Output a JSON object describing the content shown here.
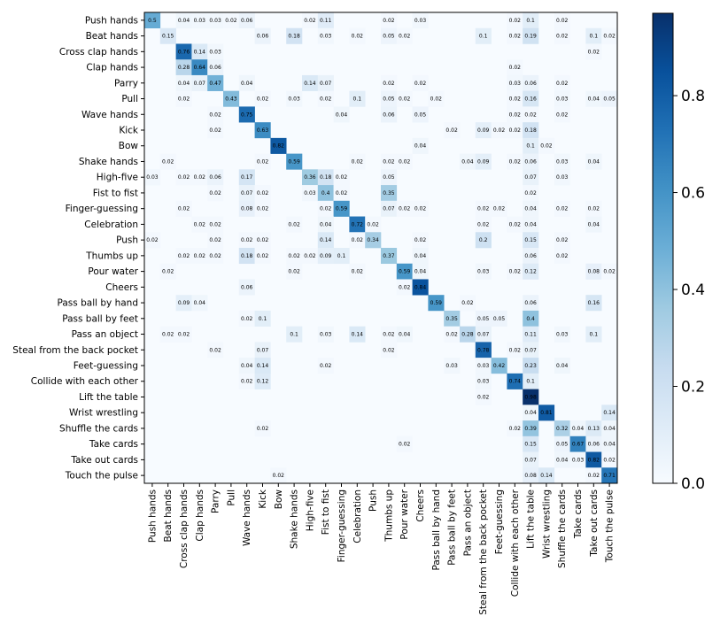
{
  "chart_data": {
    "type": "heatmap",
    "title": "",
    "xlabel": "",
    "ylabel": "",
    "colormap": "Blues",
    "vmin": 0.0,
    "vmax": 0.97,
    "colorbar_ticks": [
      "0.0",
      "0.2",
      "0.4",
      "0.6",
      "0.8"
    ],
    "colorbar_tick_values": [
      0.0,
      0.2,
      0.4,
      0.6,
      0.8
    ],
    "labels": [
      "Push hands",
      "Beat hands",
      "Cross clap hands",
      "Clap hands",
      "Parry",
      "Pull",
      "Wave hands",
      "Kick",
      "Bow",
      "Shake hands",
      "High-five",
      "Fist to fist",
      "Finger-guessing",
      "Celebration",
      "Push",
      "Thumbs up",
      "Pour water",
      "Cheers",
      "Pass ball by hand",
      "Pass ball by feet",
      "Pass an object",
      "Steal from the back pocket",
      "Feet-guessing",
      "Collide with each other",
      "Lift the table",
      "Wrist wrestling",
      "Shuffle the cards",
      "Take cards",
      "Take out cards",
      "Touch the pulse"
    ],
    "cells": [
      [
        0,
        0,
        "0.5"
      ],
      [
        0,
        2,
        "0.04"
      ],
      [
        0,
        3,
        "0.03"
      ],
      [
        0,
        4,
        "0.03"
      ],
      [
        0,
        5,
        "0.02"
      ],
      [
        0,
        6,
        "0.06"
      ],
      [
        0,
        10,
        "0.02"
      ],
      [
        0,
        11,
        "0.11"
      ],
      [
        0,
        15,
        "0.02"
      ],
      [
        0,
        17,
        "0.03"
      ],
      [
        0,
        23,
        "0.02"
      ],
      [
        0,
        24,
        "0.1"
      ],
      [
        0,
        26,
        "0.02"
      ],
      [
        1,
        1,
        "0.15"
      ],
      [
        1,
        7,
        "0.06"
      ],
      [
        1,
        9,
        "0.18"
      ],
      [
        1,
        11,
        "0.03"
      ],
      [
        1,
        13,
        "0.02"
      ],
      [
        1,
        15,
        "0.05"
      ],
      [
        1,
        16,
        "0.02"
      ],
      [
        1,
        21,
        "0.1"
      ],
      [
        1,
        23,
        "0.02"
      ],
      [
        1,
        24,
        "0.19"
      ],
      [
        1,
        26,
        "0.02"
      ],
      [
        1,
        28,
        "0.1"
      ],
      [
        1,
        29,
        "0.02"
      ],
      [
        2,
        2,
        "0.76"
      ],
      [
        2,
        3,
        "0.14"
      ],
      [
        2,
        4,
        "0.03"
      ],
      [
        2,
        28,
        "0.02"
      ],
      [
        3,
        2,
        "0.28"
      ],
      [
        3,
        3,
        "0.64"
      ],
      [
        3,
        4,
        "0.06"
      ],
      [
        3,
        23,
        "0.02"
      ],
      [
        4,
        2,
        "0.04"
      ],
      [
        4,
        3,
        "0.07"
      ],
      [
        4,
        4,
        "0.47"
      ],
      [
        4,
        6,
        "0.04"
      ],
      [
        4,
        10,
        "0.14"
      ],
      [
        4,
        11,
        "0.07"
      ],
      [
        4,
        15,
        "0.02"
      ],
      [
        4,
        17,
        "0.02"
      ],
      [
        4,
        23,
        "0.03"
      ],
      [
        4,
        24,
        "0.06"
      ],
      [
        4,
        26,
        "0.02"
      ],
      [
        5,
        2,
        "0.02"
      ],
      [
        5,
        5,
        "0.43"
      ],
      [
        5,
        7,
        "0.02"
      ],
      [
        5,
        9,
        "0.03"
      ],
      [
        5,
        11,
        "0.02"
      ],
      [
        5,
        13,
        "0.1"
      ],
      [
        5,
        15,
        "0.05"
      ],
      [
        5,
        16,
        "0.02"
      ],
      [
        5,
        18,
        "0.02"
      ],
      [
        5,
        23,
        "0.02"
      ],
      [
        5,
        24,
        "0.16"
      ],
      [
        5,
        26,
        "0.03"
      ],
      [
        5,
        28,
        "0.04"
      ],
      [
        5,
        29,
        "0.05"
      ],
      [
        6,
        4,
        "0.02"
      ],
      [
        6,
        6,
        "0.75"
      ],
      [
        6,
        12,
        "0.04"
      ],
      [
        6,
        15,
        "0.06"
      ],
      [
        6,
        17,
        "0.05"
      ],
      [
        6,
        23,
        "0.02"
      ],
      [
        6,
        24,
        "0.02"
      ],
      [
        6,
        26,
        "0.02"
      ],
      [
        7,
        4,
        "0.02"
      ],
      [
        7,
        7,
        "0.63"
      ],
      [
        7,
        19,
        "0.02"
      ],
      [
        7,
        21,
        "0.09"
      ],
      [
        7,
        22,
        "0.02"
      ],
      [
        7,
        23,
        "0.02"
      ],
      [
        7,
        24,
        "0.18"
      ],
      [
        8,
        8,
        "0.82"
      ],
      [
        8,
        17,
        "0.04"
      ],
      [
        8,
        24,
        "0.1"
      ],
      [
        8,
        25,
        "0.02"
      ],
      [
        9,
        1,
        "0.02"
      ],
      [
        9,
        7,
        "0.02"
      ],
      [
        9,
        9,
        "0.59"
      ],
      [
        9,
        13,
        "0.02"
      ],
      [
        9,
        15,
        "0.02"
      ],
      [
        9,
        16,
        "0.02"
      ],
      [
        9,
        20,
        "0.04"
      ],
      [
        9,
        21,
        "0.09"
      ],
      [
        9,
        23,
        "0.02"
      ],
      [
        9,
        24,
        "0.06"
      ],
      [
        9,
        26,
        "0.03"
      ],
      [
        9,
        28,
        "0.04"
      ],
      [
        10,
        0,
        "0.03"
      ],
      [
        10,
        2,
        "0.02"
      ],
      [
        10,
        3,
        "0.02"
      ],
      [
        10,
        4,
        "0.06"
      ],
      [
        10,
        6,
        "0.17"
      ],
      [
        10,
        10,
        "0.36"
      ],
      [
        10,
        11,
        "0.18"
      ],
      [
        10,
        12,
        "0.02"
      ],
      [
        10,
        15,
        "0.05"
      ],
      [
        10,
        24,
        "0.07"
      ],
      [
        10,
        26,
        "0.03"
      ],
      [
        11,
        4,
        "0.02"
      ],
      [
        11,
        6,
        "0.07"
      ],
      [
        11,
        7,
        "0.02"
      ],
      [
        11,
        10,
        "0.03"
      ],
      [
        11,
        11,
        "0.4"
      ],
      [
        11,
        12,
        "0.02"
      ],
      [
        11,
        15,
        "0.35"
      ],
      [
        11,
        24,
        "0.02"
      ],
      [
        12,
        2,
        "0.02"
      ],
      [
        12,
        6,
        "0.08"
      ],
      [
        12,
        7,
        "0.02"
      ],
      [
        12,
        11,
        "0.02"
      ],
      [
        12,
        12,
        "0.59"
      ],
      [
        12,
        15,
        "0.07"
      ],
      [
        12,
        16,
        "0.02"
      ],
      [
        12,
        17,
        "0.02"
      ],
      [
        12,
        21,
        "0.02"
      ],
      [
        12,
        22,
        "0.02"
      ],
      [
        12,
        24,
        "0.04"
      ],
      [
        12,
        26,
        "0.02"
      ],
      [
        12,
        28,
        "0.02"
      ],
      [
        13,
        3,
        "0.02"
      ],
      [
        13,
        4,
        "0.02"
      ],
      [
        13,
        9,
        "0.02"
      ],
      [
        13,
        11,
        "0.04"
      ],
      [
        13,
        13,
        "0.72"
      ],
      [
        13,
        14,
        "0.02"
      ],
      [
        13,
        21,
        "0.02"
      ],
      [
        13,
        23,
        "0.02"
      ],
      [
        13,
        24,
        "0.04"
      ],
      [
        13,
        28,
        "0.04"
      ],
      [
        14,
        0,
        "0.02"
      ],
      [
        14,
        4,
        "0.02"
      ],
      [
        14,
        6,
        "0.02"
      ],
      [
        14,
        7,
        "0.02"
      ],
      [
        14,
        11,
        "0.14"
      ],
      [
        14,
        13,
        "0.02"
      ],
      [
        14,
        14,
        "0.34"
      ],
      [
        14,
        17,
        "0.02"
      ],
      [
        14,
        21,
        "0.2"
      ],
      [
        14,
        24,
        "0.15"
      ],
      [
        14,
        26,
        "0.02"
      ],
      [
        15,
        2,
        "0.02"
      ],
      [
        15,
        3,
        "0.02"
      ],
      [
        15,
        4,
        "0.02"
      ],
      [
        15,
        6,
        "0.18"
      ],
      [
        15,
        7,
        "0.02"
      ],
      [
        15,
        9,
        "0.02"
      ],
      [
        15,
        10,
        "0.02"
      ],
      [
        15,
        11,
        "0.09"
      ],
      [
        15,
        12,
        "0.1"
      ],
      [
        15,
        15,
        "0.37"
      ],
      [
        15,
        17,
        "0.04"
      ],
      [
        15,
        24,
        "0.06"
      ],
      [
        15,
        26,
        "0.02"
      ],
      [
        16,
        1,
        "0.02"
      ],
      [
        16,
        9,
        "0.02"
      ],
      [
        16,
        13,
        "0.02"
      ],
      [
        16,
        16,
        "0.59"
      ],
      [
        16,
        17,
        "0.04"
      ],
      [
        16,
        21,
        "0.03"
      ],
      [
        16,
        23,
        "0.02"
      ],
      [
        16,
        24,
        "0.12"
      ],
      [
        16,
        28,
        "0.08"
      ],
      [
        16,
        29,
        "0.02"
      ],
      [
        17,
        6,
        "0.06"
      ],
      [
        17,
        16,
        "0.02"
      ],
      [
        17,
        17,
        "0.84"
      ],
      [
        18,
        2,
        "0.09"
      ],
      [
        18,
        3,
        "0.04"
      ],
      [
        18,
        18,
        "0.59"
      ],
      [
        18,
        20,
        "0.02"
      ],
      [
        18,
        24,
        "0.06"
      ],
      [
        18,
        28,
        "0.16"
      ],
      [
        19,
        6,
        "0.02"
      ],
      [
        19,
        7,
        "0.1"
      ],
      [
        19,
        19,
        "0.35"
      ],
      [
        19,
        21,
        "0.05"
      ],
      [
        19,
        22,
        "0.05"
      ],
      [
        19,
        24,
        "0.4"
      ],
      [
        20,
        1,
        "0.02"
      ],
      [
        20,
        2,
        "0.02"
      ],
      [
        20,
        9,
        "0.1"
      ],
      [
        20,
        11,
        "0.03"
      ],
      [
        20,
        13,
        "0.14"
      ],
      [
        20,
        15,
        "0.02"
      ],
      [
        20,
        16,
        "0.04"
      ],
      [
        20,
        19,
        "0.02"
      ],
      [
        20,
        20,
        "0.28"
      ],
      [
        20,
        21,
        "0.07"
      ],
      [
        20,
        24,
        "0.11"
      ],
      [
        20,
        26,
        "0.03"
      ],
      [
        20,
        28,
        "0.1"
      ],
      [
        21,
        4,
        "0.02"
      ],
      [
        21,
        7,
        "0.07"
      ],
      [
        21,
        15,
        "0.02"
      ],
      [
        21,
        21,
        "0.78"
      ],
      [
        21,
        23,
        "0.02"
      ],
      [
        21,
        24,
        "0.07"
      ],
      [
        22,
        6,
        "0.04"
      ],
      [
        22,
        7,
        "0.14"
      ],
      [
        22,
        11,
        "0.02"
      ],
      [
        22,
        19,
        "0.03"
      ],
      [
        22,
        21,
        "0.03"
      ],
      [
        22,
        22,
        "0.42"
      ],
      [
        22,
        24,
        "0.23"
      ],
      [
        22,
        26,
        "0.04"
      ],
      [
        23,
        6,
        "0.02"
      ],
      [
        23,
        7,
        "0.12"
      ],
      [
        23,
        21,
        "0.03"
      ],
      [
        23,
        23,
        "0.74"
      ],
      [
        23,
        24,
        "0.1"
      ],
      [
        24,
        21,
        "0.02"
      ],
      [
        24,
        24,
        "0.98"
      ],
      [
        25,
        24,
        "0.04"
      ],
      [
        25,
        25,
        "0.81"
      ],
      [
        25,
        29,
        "0.14"
      ],
      [
        26,
        7,
        "0.02"
      ],
      [
        26,
        23,
        "0.02"
      ],
      [
        26,
        24,
        "0.39"
      ],
      [
        26,
        26,
        "0.32"
      ],
      [
        26,
        27,
        "0.04"
      ],
      [
        26,
        28,
        "0.13"
      ],
      [
        26,
        29,
        "0.04"
      ],
      [
        27,
        16,
        "0.02"
      ],
      [
        27,
        24,
        "0.15"
      ],
      [
        27,
        26,
        "0.05"
      ],
      [
        27,
        27,
        "0.67"
      ],
      [
        27,
        28,
        "0.06"
      ],
      [
        27,
        29,
        "0.04"
      ],
      [
        28,
        24,
        "0.07"
      ],
      [
        28,
        26,
        "0.04"
      ],
      [
        28,
        27,
        "0.03"
      ],
      [
        28,
        28,
        "0.82"
      ],
      [
        28,
        29,
        "0.02"
      ],
      [
        29,
        8,
        "0.02"
      ],
      [
        29,
        24,
        "0.08"
      ],
      [
        29,
        25,
        "0.14"
      ],
      [
        29,
        28,
        "0.02"
      ],
      [
        29,
        29,
        "0.71"
      ]
    ]
  }
}
